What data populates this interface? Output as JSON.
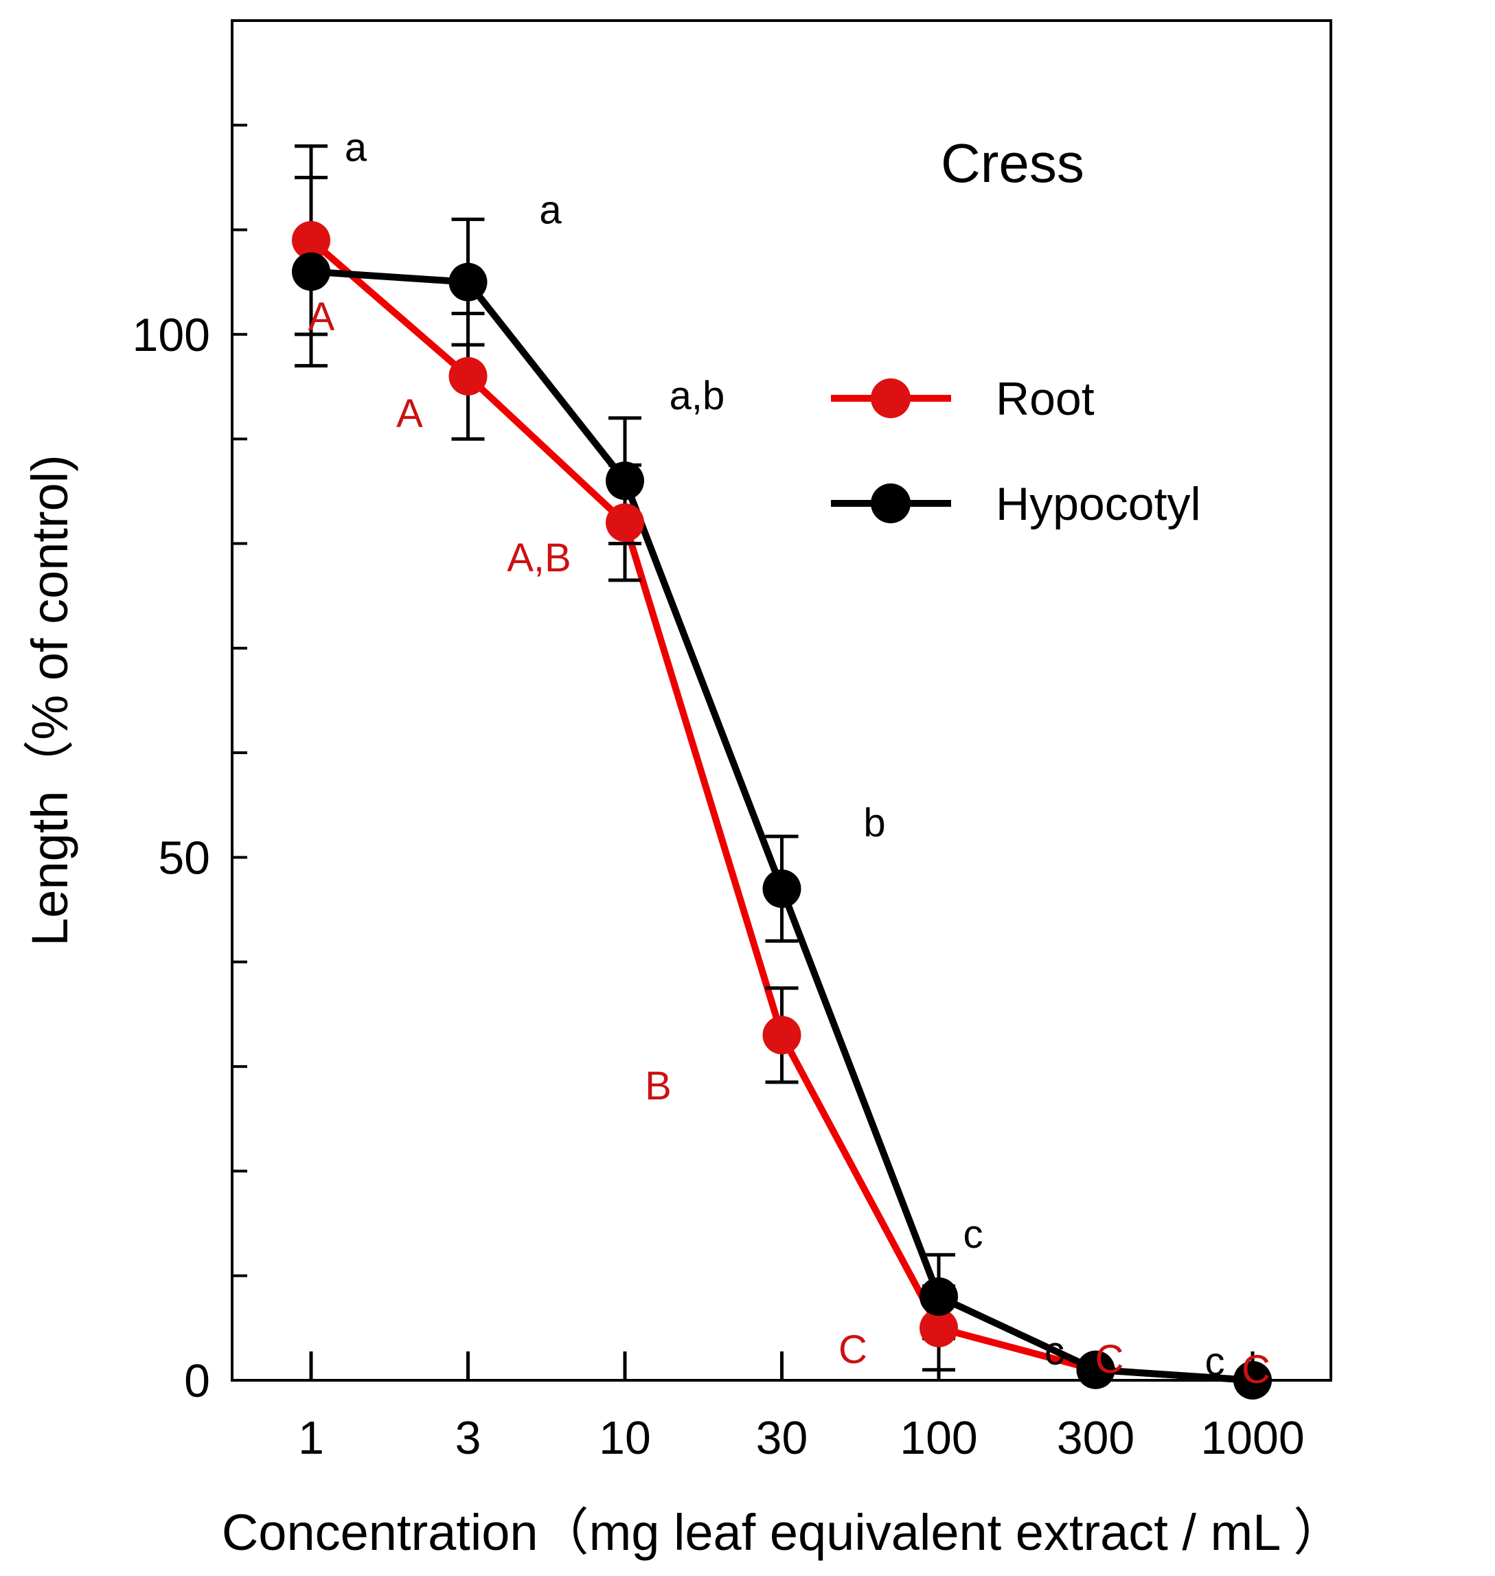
{
  "chart_data": {
    "type": "line",
    "title": "Cress",
    "xlabel": "Concentration（mg leaf equivalent extract / mL ）",
    "ylabel": "Length（% of control)",
    "x_scale": "log",
    "categories": [
      "1",
      "3",
      "10",
      "30",
      "100",
      "300",
      "1000"
    ],
    "x": [
      1,
      3,
      10,
      30,
      100,
      300,
      1000
    ],
    "ylim": [
      0,
      130
    ],
    "yticks": [
      0,
      50,
      100
    ],
    "yticks_minor": [
      0,
      10,
      20,
      30,
      40,
      50,
      60,
      70,
      80,
      90,
      100,
      110,
      120
    ],
    "series": [
      {
        "name": "Root",
        "color": "#ee0000",
        "values": [
          109,
          96,
          82,
          33,
          5,
          1,
          0
        ],
        "errors": [
          9,
          6,
          5.5,
          4.5,
          4,
          0,
          0
        ],
        "letters": [
          "A",
          "A",
          "A,B",
          "B",
          "C",
          "C",
          "C"
        ],
        "letter_color": "#cc1111"
      },
      {
        "name": "Hypocotyl",
        "color": "#000000",
        "values": [
          106,
          105,
          86,
          47,
          8,
          1,
          0
        ],
        "errors": [
          9,
          6,
          6,
          5,
          4,
          0.5,
          0.5
        ],
        "letters": [
          "a",
          "a",
          "a,b",
          "b",
          "c",
          "c",
          "c"
        ],
        "letter_color": "#000000"
      }
    ],
    "legend_position": "right"
  }
}
